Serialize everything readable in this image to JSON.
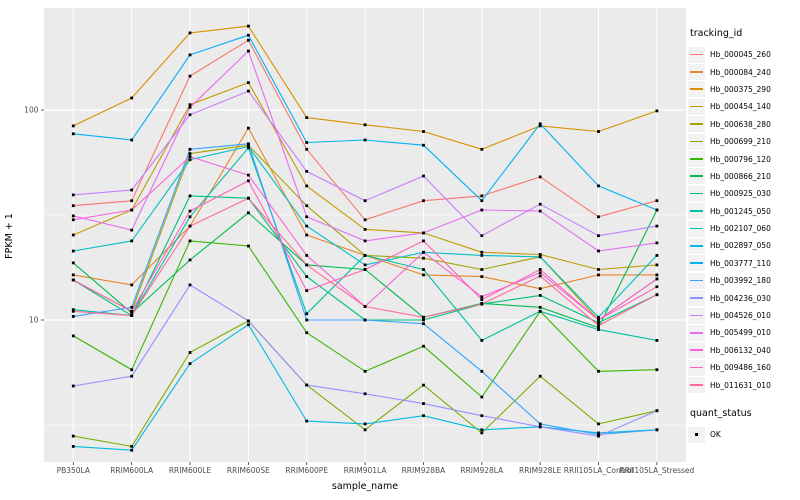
{
  "chart_data": {
    "type": "line",
    "title": "",
    "xlabel": "sample_name",
    "ylabel": "FPKM + 1",
    "y_scale": "log10",
    "ylim": [
      2.1,
      300
    ],
    "y_ticks": [
      100,
      10
    ],
    "y_minor_gridlines": [
      31.62,
      3.162
    ],
    "grid": true,
    "legend_position": "right",
    "legend_title": "tracking_id",
    "quant_status": {
      "title": "quant_status",
      "value": "OK"
    },
    "panel_bg": "#EBEBEB",
    "grid_color": "#FFFFFF",
    "tick_text_color": "#4D4D4D",
    "point_color": "#000000",
    "categories": [
      "PB350LA",
      "RRIM600LA",
      "RRIM600LE",
      "RRIM600SE",
      "RRIM600PE",
      "RRIM901LA",
      "RRIM928BA",
      "RRIM928LA",
      "RRIM928LE",
      "RRII105LA_Control",
      "RRII105LA_Stressed"
    ],
    "series": [
      {
        "name": "Hb_000045_260",
        "color": "#F8766D",
        "values": [
          35,
          37,
          145,
          215,
          65,
          30,
          37,
          39,
          48,
          31,
          37
        ]
      },
      {
        "name": "Hb_000084_240",
        "color": "#E88526",
        "values": [
          16.4,
          14.7,
          28,
          82,
          25.4,
          20.3,
          16.4,
          16.1,
          14.1,
          16.4,
          16.4
        ]
      },
      {
        "name": "Hb_000375_290",
        "color": "#D89000",
        "values": [
          84,
          114,
          233,
          251,
          92,
          85,
          79,
          65,
          84,
          79,
          99
        ]
      },
      {
        "name": "Hb_000454_140",
        "color": "#C09B00",
        "values": [
          25.4,
          33.4,
          106,
          135,
          43.5,
          27,
          26,
          21,
          20.5,
          17.4,
          18.3
        ]
      },
      {
        "name": "Hb_000638_280",
        "color": "#A3A500",
        "values": [
          15.5,
          11,
          62,
          68,
          35,
          20.3,
          19.7,
          17.4,
          20,
          10,
          15.7
        ]
      },
      {
        "name": "Hb_000699_210",
        "color": "#7CAE00",
        "values": [
          2.8,
          2.5,
          7.0,
          9.9,
          4.9,
          3.0,
          4.9,
          2.9,
          5.4,
          3.2,
          3.7
        ]
      },
      {
        "name": "Hb_000796_120",
        "color": "#39B600",
        "values": [
          8.4,
          5.8,
          23.8,
          22.5,
          8.7,
          5.7,
          7.5,
          4.3,
          11,
          5.7,
          5.8
        ]
      },
      {
        "name": "Hb_000866_210",
        "color": "#00BB4E",
        "values": [
          18.7,
          10.8,
          19.3,
          32.4,
          18.3,
          17.4,
          10.3,
          12,
          11.5,
          9.2,
          33.4
        ]
      },
      {
        "name": "Hb_000925_030",
        "color": "#00BF7D",
        "values": [
          15.5,
          10.5,
          39,
          38,
          16.1,
          10,
          10,
          11.9,
          13.1,
          9.7,
          13.2
        ]
      },
      {
        "name": "Hb_001245_050",
        "color": "#00C1A3",
        "values": [
          11.2,
          10.5,
          31,
          66,
          10.7,
          20.3,
          17.4,
          8.0,
          11,
          9.0,
          8.0
        ]
      },
      {
        "name": "Hb_002107_060",
        "color": "#00BFC4",
        "values": [
          21.3,
          23.8,
          58,
          67,
          28,
          18.3,
          21,
          20.3,
          20,
          10.3,
          20.3
        ]
      },
      {
        "name": "Hb_002897_050",
        "color": "#00BAE0",
        "values": [
          2.5,
          2.4,
          6.2,
          9.5,
          3.3,
          3.2,
          3.5,
          3.0,
          3.1,
          2.9,
          3.0
        ]
      },
      {
        "name": "Hb_003777_110",
        "color": "#00B0F6",
        "values": [
          77,
          72,
          183,
          227,
          70,
          72,
          68,
          37,
          86,
          43.5,
          33.4
        ]
      },
      {
        "name": "Hb_003992_180",
        "color": "#35A2FF",
        "values": [
          10.4,
          11.5,
          65,
          69,
          10,
          10,
          9.6,
          5.7,
          3.2,
          2.85,
          3.0
        ]
      },
      {
        "name": "Hb_004236_030",
        "color": "#9590FF",
        "values": [
          4.85,
          5.4,
          14.7,
          9.9,
          4.9,
          4.45,
          4.0,
          3.5,
          3.1,
          2.8,
          3.7
        ]
      },
      {
        "name": "Hb_004526_010",
        "color": "#C77CFF",
        "values": [
          39.4,
          41.6,
          95,
          123,
          51,
          37,
          48.5,
          25.2,
          35.6,
          25.2,
          28
        ]
      },
      {
        "name": "Hb_005499_010",
        "color": "#E76BF3",
        "values": [
          31.3,
          26.8,
          103,
          191,
          31,
          23.8,
          26,
          33.4,
          33,
          21.3,
          23.3
        ]
      },
      {
        "name": "Hb_006132_040",
        "color": "#FA62DB",
        "values": [
          30,
          33.4,
          60,
          49,
          20.3,
          11.6,
          21,
          12.9,
          16.8,
          10,
          15.7
        ]
      },
      {
        "name": "Hb_009486_160",
        "color": "#FF62BC",
        "values": [
          15.5,
          11,
          33,
          46,
          13.8,
          17.4,
          23.8,
          12.5,
          17.4,
          10,
          14.4
        ]
      },
      {
        "name": "Hb_011631_010",
        "color": "#FF6A98",
        "values": [
          11,
          10.5,
          28,
          38,
          18.3,
          11.6,
          10.3,
          11.9,
          16.2,
          9.4,
          13.2
        ]
      }
    ]
  }
}
